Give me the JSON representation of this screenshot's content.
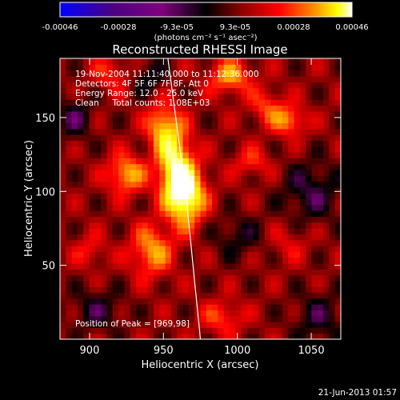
{
  "colorbar": {
    "ticks": [
      "-0.00046",
      "-0.00028",
      "-9.3e-05",
      "9.3e-05",
      "0.00028",
      "0.00046"
    ],
    "units": "(photons cm⁻² s⁻¹ asec⁻²)"
  },
  "chart_data": {
    "type": "heatmap",
    "title": "Reconstructed RHESSI Image",
    "xlabel": "Heliocentric X (arcsec)",
    "ylabel": "Heliocentric Y (arcsec)",
    "xlim": [
      880,
      1070
    ],
    "ylim": [
      0,
      190
    ],
    "xticks": [
      900,
      950,
      1000,
      1050
    ],
    "yticks": [
      50,
      100,
      150
    ],
    "value_range": [
      -0.00046,
      0.00046
    ],
    "colormap": [
      "#0000ff",
      "#4b0082",
      "#800080",
      "#000000",
      "#8b0000",
      "#ff0000",
      "#ff8c00",
      "#ffff00",
      "#ffffff"
    ],
    "annotations": [
      "19-Nov-2004 11:11:40.000 to 11:12:36.000",
      "Detectors: 4F 5F 6F 7F 8F, Att 0",
      "Energy Range: 12.0 - 25.0 keV",
      "Clean     Total counts: 1.08E+03"
    ],
    "peak_label": "Position of Peak = [969,98]",
    "peak": {
      "x": 969,
      "y": 98
    },
    "limb_points": [
      [
        953,
        190
      ],
      [
        957,
        160
      ],
      [
        961,
        130
      ],
      [
        965,
        100
      ],
      [
        968,
        70
      ],
      [
        971,
        40
      ],
      [
        974,
        10
      ],
      [
        975,
        0
      ]
    ],
    "sources": [
      {
        "x": 965,
        "y": 98,
        "sx": 9,
        "sy": 14,
        "amp": 1.0
      },
      {
        "x": 957,
        "y": 122,
        "sx": 8,
        "sy": 18,
        "amp": 0.75
      },
      {
        "x": 948,
        "y": 145,
        "sx": 7,
        "sy": 10,
        "amp": 0.5
      },
      {
        "x": 942,
        "y": 60,
        "sx": 10,
        "sy": 12,
        "amp": 0.55
      },
      {
        "x": 925,
        "y": 112,
        "sx": 9,
        "sy": 9,
        "amp": 0.6
      },
      {
        "x": 995,
        "y": 178,
        "sx": 10,
        "sy": 8,
        "amp": 0.55
      },
      {
        "x": 1020,
        "y": 158,
        "sx": 8,
        "sy": 8,
        "amp": 0.35
      },
      {
        "x": 1035,
        "y": 148,
        "sx": 8,
        "sy": 7,
        "amp": 0.5
      },
      {
        "x": 1010,
        "y": 120,
        "sx": 9,
        "sy": 7,
        "amp": 0.3
      },
      {
        "x": 990,
        "y": 15,
        "sx": 10,
        "sy": 8,
        "amp": 0.35
      },
      {
        "x": 1035,
        "y": 65,
        "sx": 9,
        "sy": 9,
        "amp": 0.2
      },
      {
        "x": 900,
        "y": 60,
        "sx": 8,
        "sy": 8,
        "amp": 0.25
      },
      {
        "x": 915,
        "y": 180,
        "sx": 9,
        "sy": 8,
        "amp": 0.3
      },
      {
        "x": 890,
        "y": 150,
        "sx": 8,
        "sy": 10,
        "amp": -0.35
      },
      {
        "x": 905,
        "y": 20,
        "sx": 12,
        "sy": 10,
        "amp": -0.3
      },
      {
        "x": 1050,
        "y": 100,
        "sx": 14,
        "sy": 14,
        "amp": -0.35
      },
      {
        "x": 1000,
        "y": 70,
        "sx": 12,
        "sy": 10,
        "amp": -0.25
      },
      {
        "x": 1055,
        "y": 15,
        "sx": 12,
        "sy": 12,
        "amp": -0.3
      },
      {
        "x": 940,
        "y": 178,
        "sx": 8,
        "sy": 8,
        "amp": -0.3
      }
    ]
  },
  "footer": {
    "date": "21-Jun-2013 01:57"
  }
}
